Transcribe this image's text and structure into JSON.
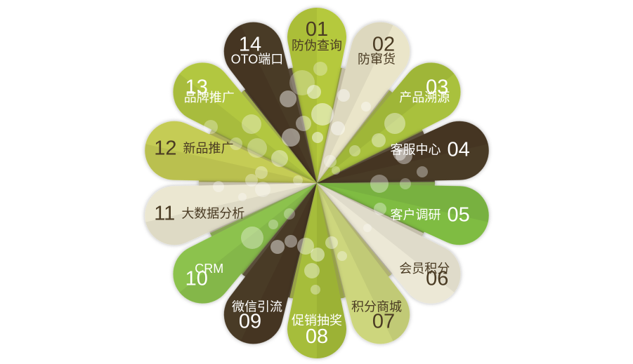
{
  "diagram": {
    "background_color": "#ffffff",
    "petal_count": "14"
  },
  "petals": [
    {
      "number": "01",
      "label": "防伪查询",
      "color": "#b5c93c",
      "text_color": "#4a3b23"
    },
    {
      "number": "02",
      "label": "防窜货",
      "color": "#eae5c9",
      "text_color": "#4a3b23"
    },
    {
      "number": "03",
      "label": "产品溯源",
      "color": "#a9c13c",
      "text_color": "#ffffff"
    },
    {
      "number": "04",
      "label": "客服中心",
      "color": "#493a26",
      "text_color": "#ffffff"
    },
    {
      "number": "05",
      "label": "客户调研",
      "color": "#7fbc43",
      "text_color": "#ffffff"
    },
    {
      "number": "06",
      "label": "会员积分",
      "color": "#ece8d6",
      "text_color": "#4a3b23"
    },
    {
      "number": "07",
      "label": "积分商城",
      "color": "#cdd67d",
      "text_color": "#4a3b23"
    },
    {
      "number": "08",
      "label": "促销抽奖",
      "color": "#a6bd3a",
      "text_color": "#ffffff"
    },
    {
      "number": "09",
      "label": "微信引流",
      "color": "#483a26",
      "text_color": "#ffffff"
    },
    {
      "number": "10",
      "label": "CRM",
      "color": "#8cc24d",
      "text_color": "#ffffff"
    },
    {
      "number": "11",
      "label": "大数据分析",
      "color": "#ebe7d1",
      "text_color": "#4a3b23"
    },
    {
      "number": "12",
      "label": "新品推广",
      "color": "#c5cc55",
      "text_color": "#4a3b23"
    },
    {
      "number": "13",
      "label": "品牌推广",
      "color": "#b2c741",
      "text_color": "#ffffff"
    },
    {
      "number": "14",
      "label": "OTO端口",
      "color": "#493a26",
      "text_color": "#ffffff"
    }
  ]
}
